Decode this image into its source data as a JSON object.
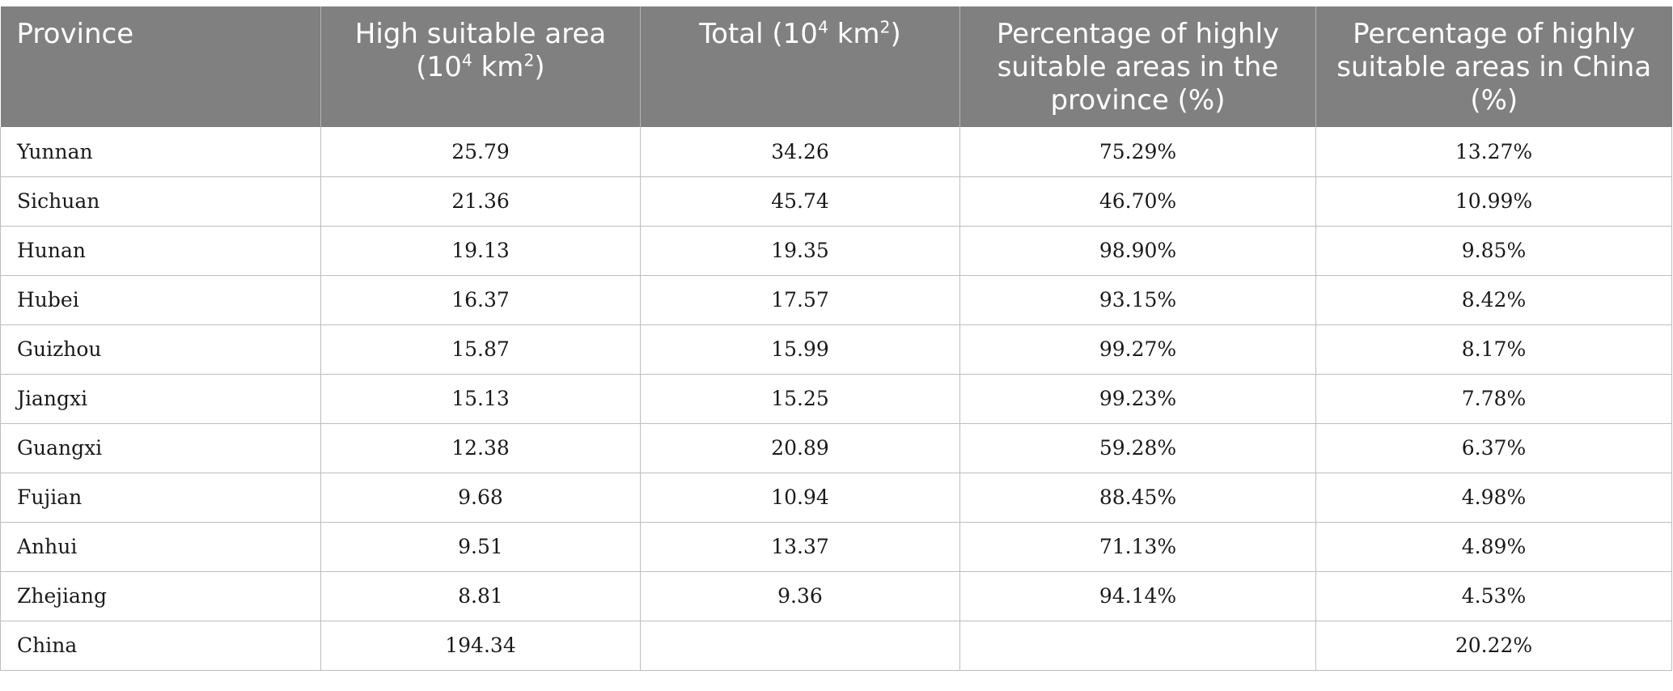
{
  "table": {
    "headers": {
      "province": "Province",
      "high_suitable_pre": "High suitable area (10",
      "high_suitable_exp": "4",
      "high_suitable_mid": " km",
      "high_suitable_exp2": "2",
      "high_suitable_post": ")",
      "total_pre": "Total (10",
      "total_exp": "4",
      "total_mid": " km",
      "total_exp2": "2",
      "total_post": ")",
      "pct_province": "Percentage of highly suitable areas in the province (%)",
      "pct_china": "Percentage of highly suitable areas in China (%)"
    },
    "rows": [
      {
        "province": "Yunnan",
        "high": "25.79",
        "total": "34.26",
        "pct_prov": "75.29%",
        "pct_china": "13.27%"
      },
      {
        "province": "Sichuan",
        "high": "21.36",
        "total": "45.74",
        "pct_prov": "46.70%",
        "pct_china": "10.99%"
      },
      {
        "province": "Hunan",
        "high": "19.13",
        "total": "19.35",
        "pct_prov": "98.90%",
        "pct_china": "9.85%"
      },
      {
        "province": "Hubei",
        "high": "16.37",
        "total": "17.57",
        "pct_prov": "93.15%",
        "pct_china": "8.42%"
      },
      {
        "province": "Guizhou",
        "high": "15.87",
        "total": "15.99",
        "pct_prov": "99.27%",
        "pct_china": "8.17%"
      },
      {
        "province": "Jiangxi",
        "high": "15.13",
        "total": "15.25",
        "pct_prov": "99.23%",
        "pct_china": "7.78%"
      },
      {
        "province": "Guangxi",
        "high": "12.38",
        "total": "20.89",
        "pct_prov": "59.28%",
        "pct_china": "6.37%"
      },
      {
        "province": "Fujian",
        "high": "9.68",
        "total": "10.94",
        "pct_prov": "88.45%",
        "pct_china": "4.98%"
      },
      {
        "province": "Anhui",
        "high": "9.51",
        "total": "13.37",
        "pct_prov": "71.13%",
        "pct_china": "4.89%"
      },
      {
        "province": "Zhejiang",
        "high": "8.81",
        "total": "9.36",
        "pct_prov": "94.14%",
        "pct_china": "4.53%"
      },
      {
        "province": "China",
        "high": "194.34",
        "total": "",
        "pct_prov": "",
        "pct_china": "20.22%"
      }
    ]
  }
}
